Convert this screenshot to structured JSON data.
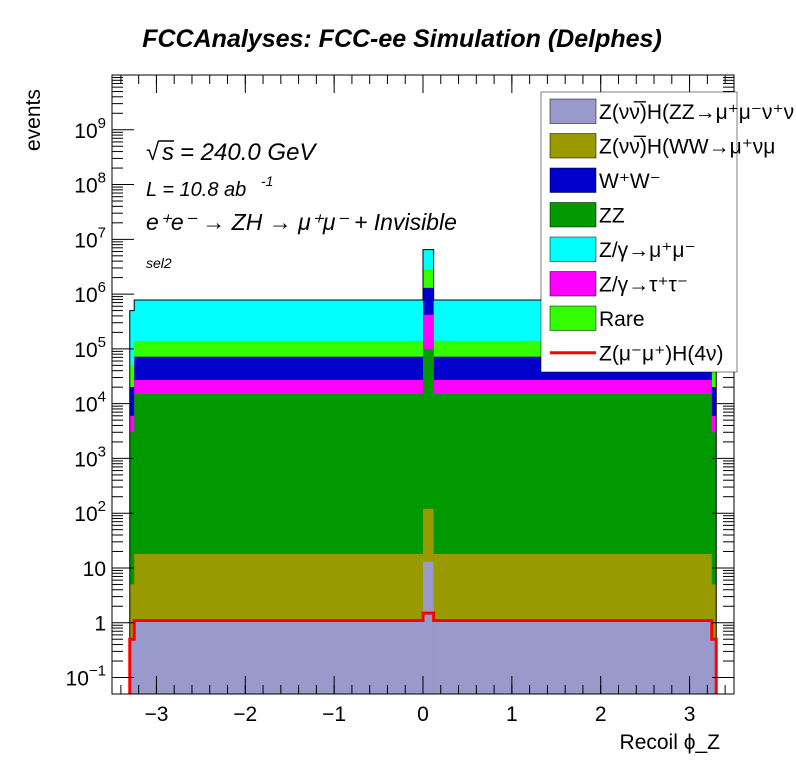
{
  "chart_data": {
    "type": "bar",
    "title": "FCCAnalyses: FCC-ee Simulation (Delphes)",
    "xlabel": "Recoil ϕ_Z",
    "ylabel": "events",
    "xlim": [
      -3.5,
      3.5
    ],
    "ylim": [
      0.05,
      10000000000
    ],
    "yscale": "log",
    "x_ticks": [
      -3,
      -2,
      -1,
      0,
      1,
      2,
      3
    ],
    "x_tick_labels": [
      "−3",
      "−2",
      "−1",
      "0",
      "1",
      "2",
      "3"
    ],
    "y_ticks": [
      0.1,
      1,
      10,
      100,
      1000,
      10000,
      100000,
      1000000,
      10000000,
      100000000,
      1000000000
    ],
    "annotations": {
      "sqrt_s": "= 240.0 GeV",
      "lumi": "L = 10.8 ab",
      "lumi_exp": "-1",
      "process": "e⁺e⁻ → ZH → μ⁺μ⁻ + Invisible",
      "selection": "sel2"
    },
    "legend_position": "top-right",
    "x_range_filled": [
      -3.25,
      3.25
    ],
    "stack_cumulative_levels": [
      {
        "name": "Z(νν̅)H(ZZ→μ⁺μ⁻ν⁺ν)",
        "color": "#9999cc",
        "top": 1.1,
        "peak_top": 13
      },
      {
        "name": "Z(νν̅)H(WW→μ⁺νμ⁻ν)",
        "color": "#999900",
        "top": 18,
        "peak_top": 120
      },
      {
        "name": "ZZ",
        "color": "#009900",
        "top": 15000,
        "peak_top": 100000
      },
      {
        "name": "Z/γ→τ⁺τ⁻",
        "color": "#ff00ff",
        "top": 27000,
        "peak_top": 420000
      },
      {
        "name": "W⁺W⁻",
        "color": "#0000cc",
        "top": 72000,
        "peak_top": 1300000
      },
      {
        "name": "Rare",
        "color": "#33ff00",
        "top": 140000,
        "peak_top": 2800000
      },
      {
        "name": "Z/γ→μ⁺μ⁻",
        "color": "#00ffff",
        "top": 780000,
        "peak_top": 6500000
      }
    ],
    "edge_bins": [
      {
        "x": [
          -3.3,
          -3.2
        ],
        "levels": [
          0.5,
          5,
          3000,
          6000,
          20000,
          50000,
          500000
        ]
      },
      {
        "x": [
          3.2,
          3.3
        ],
        "levels": [
          0.5,
          5,
          3000,
          6000,
          20000,
          50000,
          500000
        ]
      }
    ],
    "peak_bin": [
      0.0,
      0.12
    ],
    "signal_line": {
      "name": "Z(μ⁻μ⁺)H(4ν)",
      "color": "#ff0000",
      "level": 1.1,
      "peak": 1.5,
      "edge": 0.5
    },
    "legend": [
      {
        "label": "Z(νν̅)H(ZZ→μ⁺μ⁻ν⁺ν",
        "color": "#9999cc"
      },
      {
        "label": "Z(νν̅)H(WW→μ⁺νμ",
        "color": "#999900"
      },
      {
        "label": "W⁺W⁻",
        "color": "#0000cc"
      },
      {
        "label": "ZZ",
        "color": "#009900"
      },
      {
        "label": "Z/γ→μ⁺μ⁻",
        "color": "#00ffff"
      },
      {
        "label": "Z/γ→τ⁺τ⁻",
        "color": "#ff00ff"
      },
      {
        "label": "Rare",
        "color": "#33ff00"
      },
      {
        "label": "Z(μ⁻μ⁺)H(4ν)",
        "color": "#ff0000",
        "line": true
      }
    ]
  }
}
